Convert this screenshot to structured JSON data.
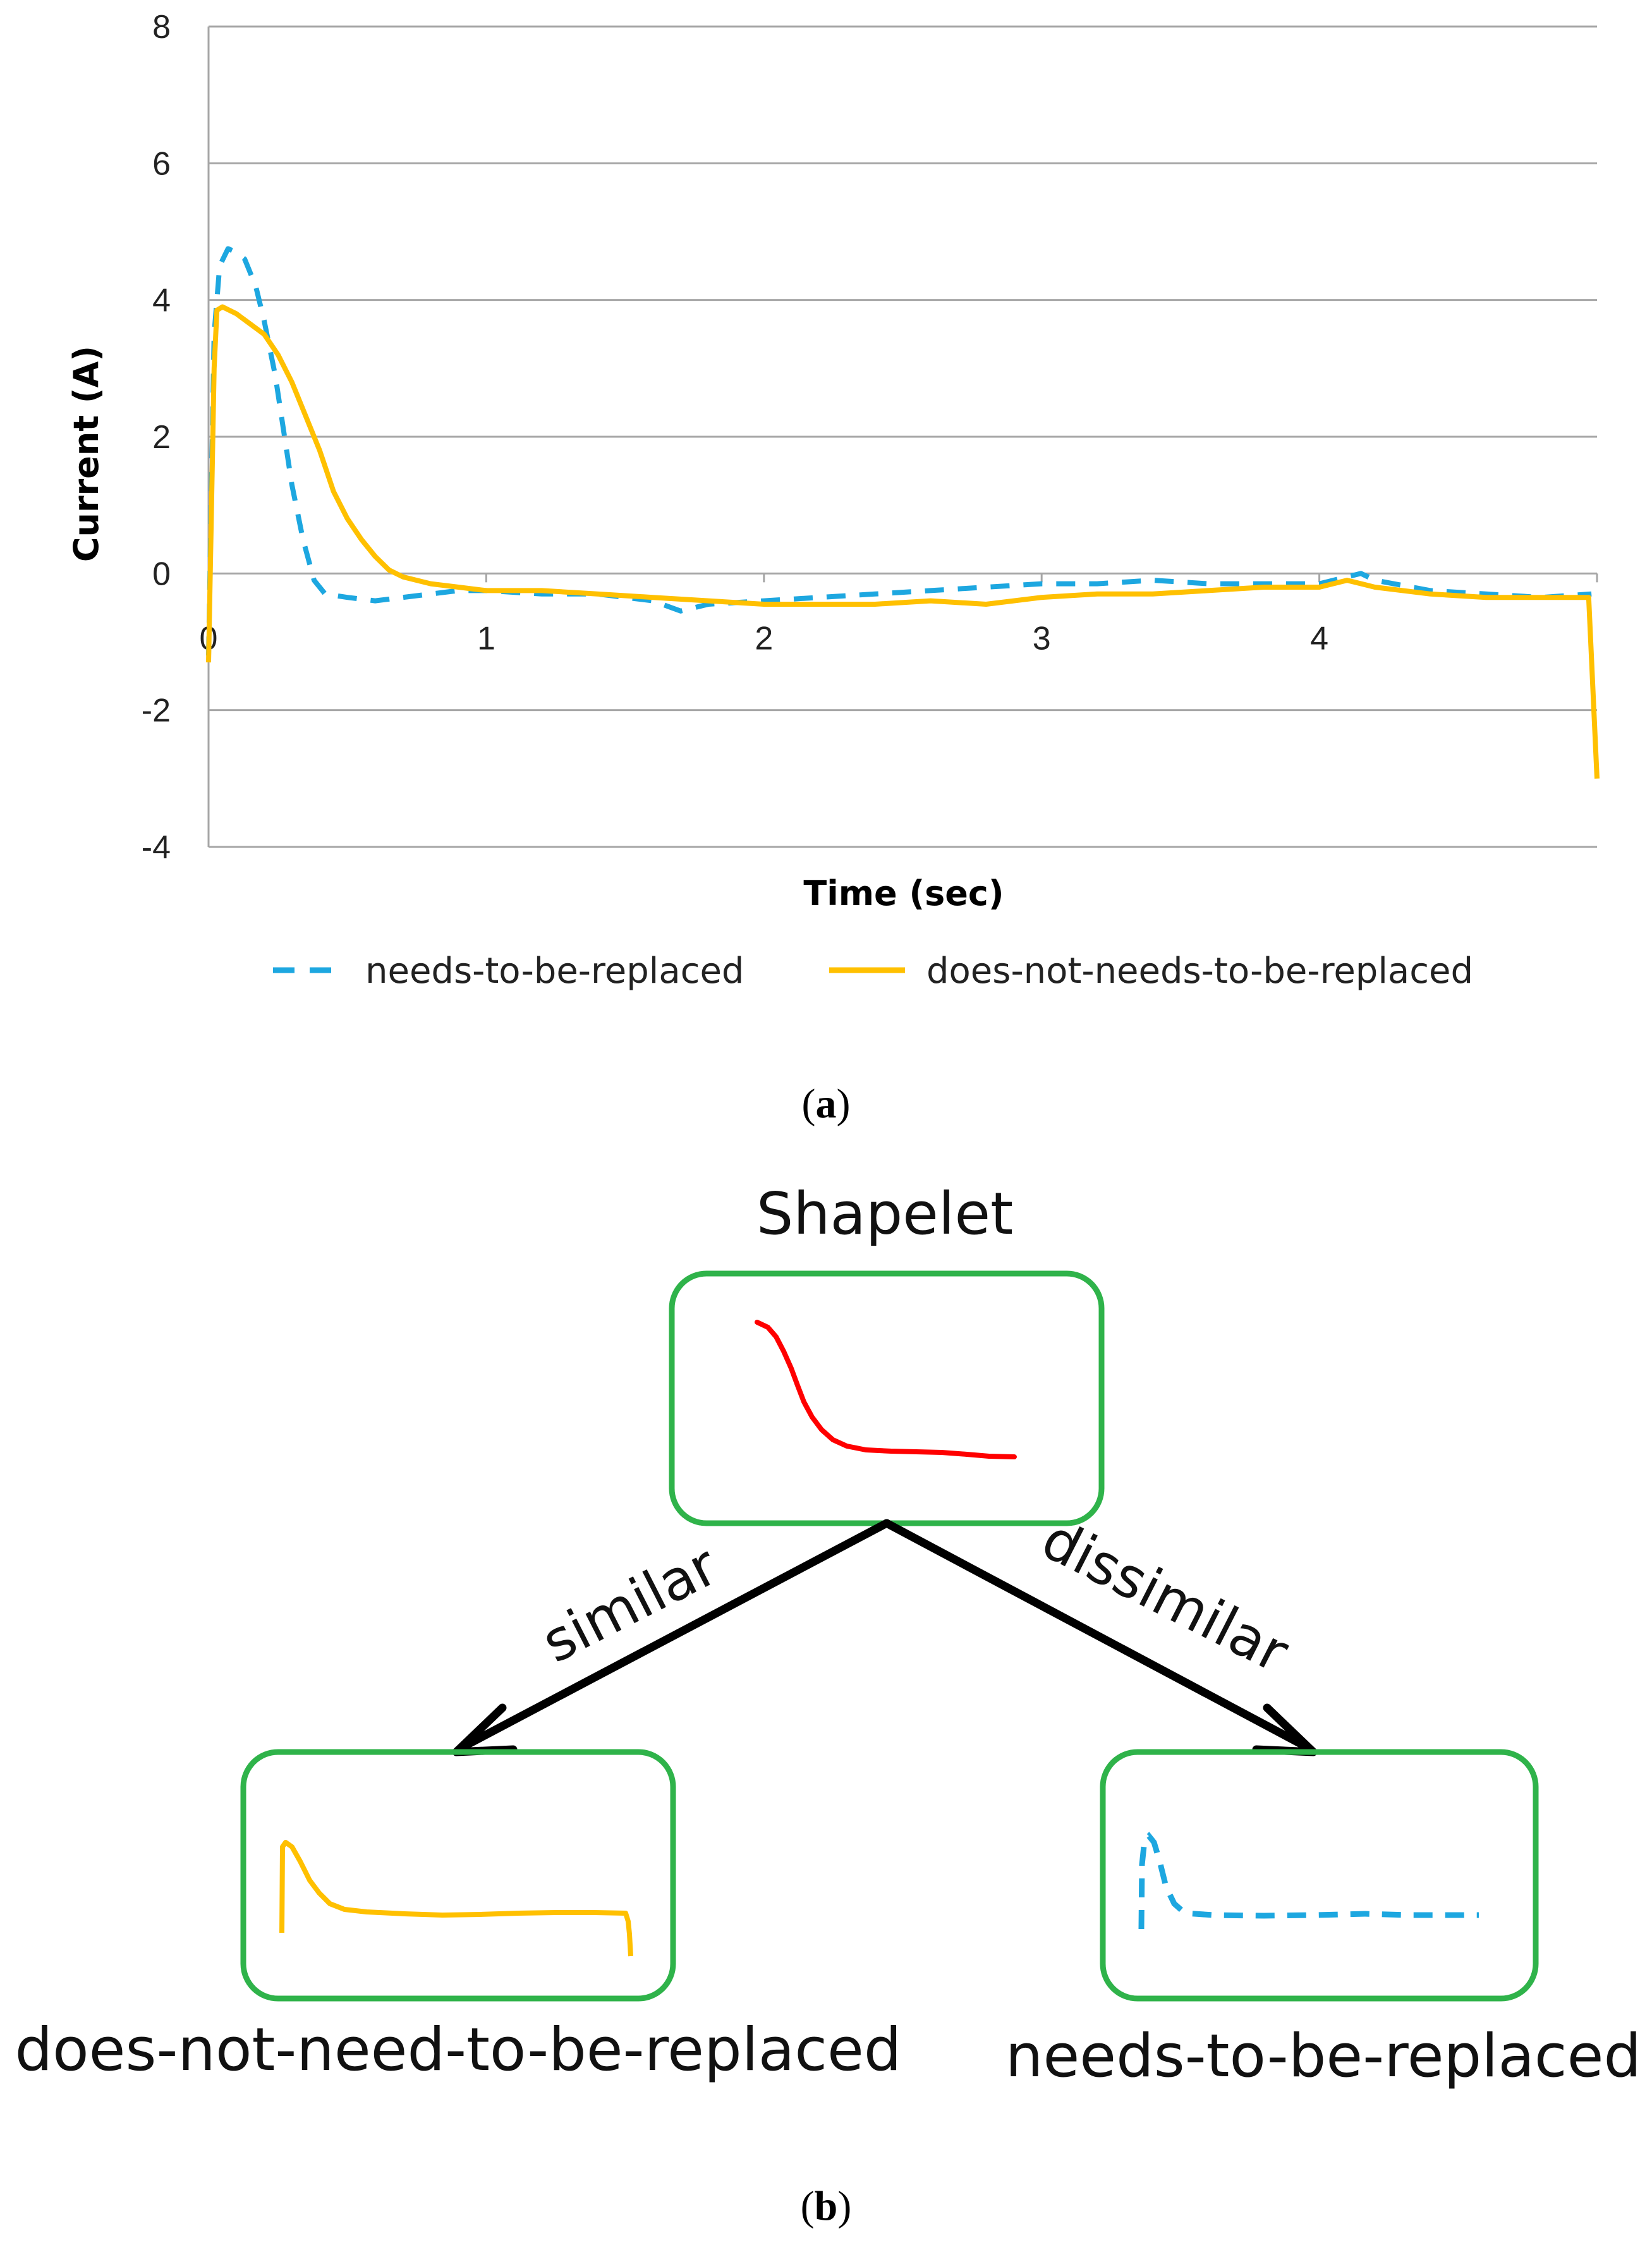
{
  "chart_data": {
    "type": "line",
    "xlabel": "Time (sec)",
    "ylabel": "Current (A)",
    "xlim": [
      0,
      5
    ],
    "ylim": [
      -4,
      8
    ],
    "x_ticks": [
      0,
      1,
      2,
      3,
      4
    ],
    "y_ticks": [
      -4,
      -2,
      0,
      2,
      4,
      6,
      8
    ],
    "grid": "horizontal",
    "legend_position": "bottom",
    "series": [
      {
        "name": "needs-to-be-replaced",
        "style": "dashed",
        "color": "#1DA7E0",
        "points": [
          [
            0,
            -1.2
          ],
          [
            0.02,
            3.5
          ],
          [
            0.04,
            4.5
          ],
          [
            0.07,
            4.75
          ],
          [
            0.1,
            4.7
          ],
          [
            0.13,
            4.6
          ],
          [
            0.17,
            4.2
          ],
          [
            0.2,
            3.7
          ],
          [
            0.24,
            2.9
          ],
          [
            0.27,
            2.1
          ],
          [
            0.3,
            1.3
          ],
          [
            0.34,
            0.5
          ],
          [
            0.38,
            -0.1
          ],
          [
            0.42,
            -0.3
          ],
          [
            0.5,
            -0.35
          ],
          [
            0.6,
            -0.4
          ],
          [
            0.7,
            -0.35
          ],
          [
            0.8,
            -0.3
          ],
          [
            0.9,
            -0.25
          ],
          [
            1.0,
            -0.25
          ],
          [
            1.2,
            -0.3
          ],
          [
            1.4,
            -0.3
          ],
          [
            1.6,
            -0.4
          ],
          [
            1.7,
            -0.55
          ],
          [
            1.8,
            -0.45
          ],
          [
            2.0,
            -0.4
          ],
          [
            2.2,
            -0.35
          ],
          [
            2.4,
            -0.3
          ],
          [
            2.6,
            -0.25
          ],
          [
            2.8,
            -0.2
          ],
          [
            3.0,
            -0.15
          ],
          [
            3.2,
            -0.15
          ],
          [
            3.4,
            -0.1
          ],
          [
            3.6,
            -0.15
          ],
          [
            3.8,
            -0.15
          ],
          [
            4.0,
            -0.15
          ],
          [
            4.1,
            -0.05
          ],
          [
            4.15,
            0.0
          ],
          [
            4.2,
            -0.1
          ],
          [
            4.4,
            -0.25
          ],
          [
            4.6,
            -0.3
          ],
          [
            4.8,
            -0.35
          ],
          [
            4.98,
            -0.3
          ]
        ]
      },
      {
        "name": "does-not-needs-to-be-replaced",
        "style": "solid",
        "color": "#FFC000",
        "points": [
          [
            0,
            -1.3
          ],
          [
            0.02,
            3.0
          ],
          [
            0.03,
            3.85
          ],
          [
            0.05,
            3.9
          ],
          [
            0.1,
            3.8
          ],
          [
            0.2,
            3.5
          ],
          [
            0.25,
            3.2
          ],
          [
            0.3,
            2.8
          ],
          [
            0.35,
            2.3
          ],
          [
            0.4,
            1.8
          ],
          [
            0.45,
            1.2
          ],
          [
            0.5,
            0.8
          ],
          [
            0.55,
            0.5
          ],
          [
            0.6,
            0.25
          ],
          [
            0.65,
            0.05
          ],
          [
            0.7,
            -0.05
          ],
          [
            0.8,
            -0.15
          ],
          [
            0.9,
            -0.2
          ],
          [
            1.0,
            -0.25
          ],
          [
            1.2,
            -0.25
          ],
          [
            1.4,
            -0.3
          ],
          [
            1.6,
            -0.35
          ],
          [
            1.8,
            -0.4
          ],
          [
            2.0,
            -0.45
          ],
          [
            2.2,
            -0.45
          ],
          [
            2.4,
            -0.45
          ],
          [
            2.6,
            -0.4
          ],
          [
            2.8,
            -0.45
          ],
          [
            3.0,
            -0.35
          ],
          [
            3.2,
            -0.3
          ],
          [
            3.4,
            -0.3
          ],
          [
            3.6,
            -0.25
          ],
          [
            3.8,
            -0.2
          ],
          [
            4.0,
            -0.2
          ],
          [
            4.1,
            -0.1
          ],
          [
            4.2,
            -0.2
          ],
          [
            4.4,
            -0.3
          ],
          [
            4.6,
            -0.35
          ],
          [
            4.8,
            -0.35
          ],
          [
            4.97,
            -0.35
          ],
          [
            5.0,
            -3.0
          ]
        ]
      }
    ]
  },
  "captions": {
    "a": "a",
    "b": "b"
  },
  "diagram": {
    "root_label": "Shapelet",
    "edge_left_label": "similar",
    "edge_right_label": "dissimilar",
    "leaf_left_label": "does-not-need-to-be-replaced",
    "leaf_right_label": "needs-to-be-replaced",
    "box_color": "#2FB34A",
    "shapelet_color": "#FF0000",
    "arrow_color": "#000000"
  }
}
